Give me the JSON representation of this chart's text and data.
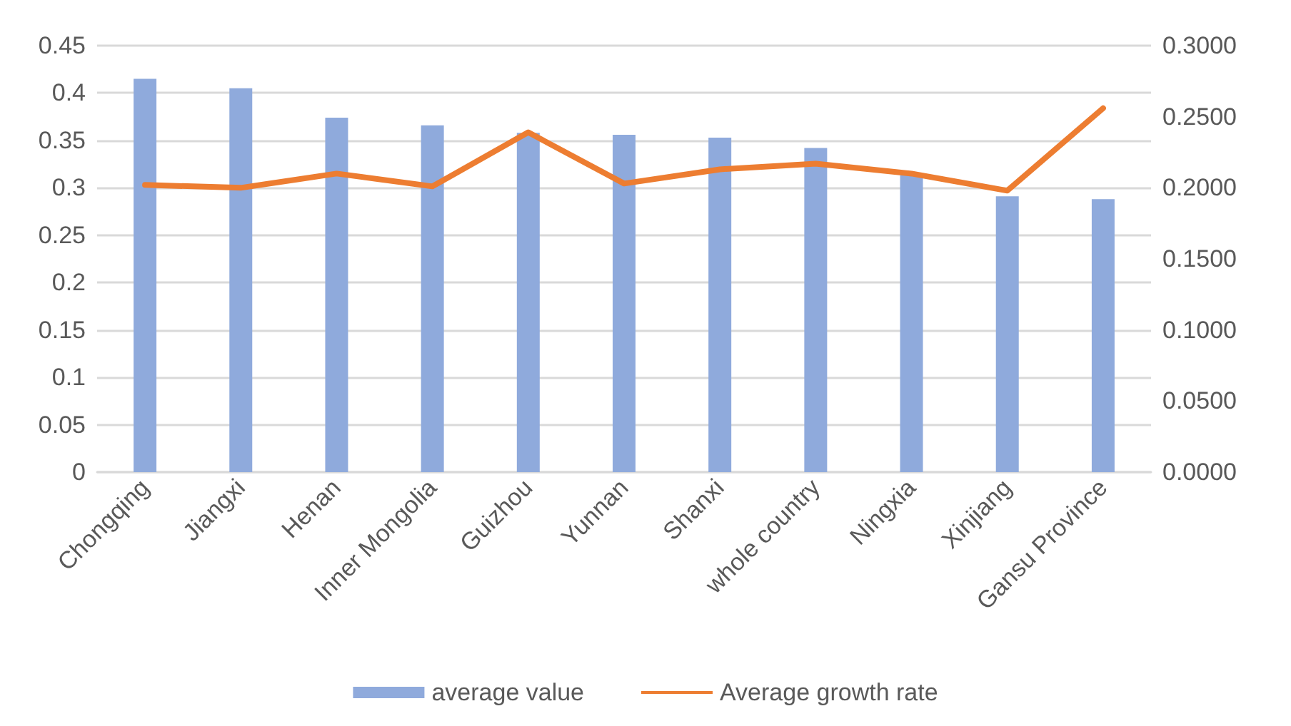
{
  "chart_data": {
    "type": "bar",
    "categories": [
      "Chongqing",
      "Jiangxi",
      "Henan",
      "Inner Mongolia",
      "Guizhou",
      "Yunnan",
      "Shanxi",
      "whole country",
      "Ningxia",
      "Xinjiang",
      "Gansu Province"
    ],
    "series": [
      {
        "name": "average value",
        "color": "#8faadc",
        "values": [
          0.415,
          0.405,
          0.374,
          0.366,
          0.358,
          0.356,
          0.353,
          0.342,
          0.313,
          0.291,
          0.288
        ]
      },
      {
        "name": "Average growth rate",
        "type": "line",
        "axis": "y2",
        "color": "#ed7d31",
        "values": [
          0.202,
          0.2,
          0.21,
          0.201,
          0.239,
          0.203,
          0.213,
          0.217,
          0.21,
          0.198,
          0.256
        ]
      }
    ],
    "ylim": [
      0,
      0.45
    ],
    "yticks": [
      0,
      0.05,
      0.1,
      0.15,
      0.2,
      0.25,
      0.3,
      0.35,
      0.4,
      0.45
    ],
    "y2lim": [
      0,
      0.3
    ],
    "y2ticks": [
      {
        "value": 0,
        "label": "0.0000"
      },
      {
        "value": 0.05,
        "label": "0.0500"
      },
      {
        "value": 0.1,
        "label": "0.1000"
      },
      {
        "value": 0.15,
        "label": "0.1500"
      },
      {
        "value": 0.2,
        "label": "0.2000"
      },
      {
        "value": 0.25,
        "label": "0.2500"
      },
      {
        "value": 0.3,
        "label": "0.3000"
      }
    ],
    "grid": "y",
    "legend": "bottom",
    "marker": "none",
    "line_style": "solid"
  }
}
